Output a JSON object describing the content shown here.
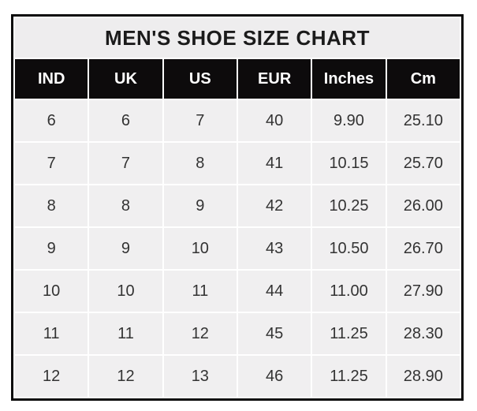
{
  "chart_data": {
    "type": "table",
    "title": "MEN'S SHOE SIZE CHART",
    "columns": [
      "IND",
      "UK",
      "US",
      "EUR",
      "Inches",
      "Cm"
    ],
    "rows": [
      [
        "6",
        "6",
        "7",
        "40",
        "9.90",
        "25.10"
      ],
      [
        "7",
        "7",
        "8",
        "41",
        "10.15",
        "25.70"
      ],
      [
        "8",
        "8",
        "9",
        "42",
        "10.25",
        "26.00"
      ],
      [
        "9",
        "9",
        "10",
        "43",
        "10.50",
        "26.70"
      ],
      [
        "10",
        "10",
        "11",
        "44",
        "11.00",
        "27.90"
      ],
      [
        "11",
        "11",
        "12",
        "45",
        "11.25",
        "28.30"
      ],
      [
        "12",
        "12",
        "13",
        "46",
        "11.25",
        "28.90"
      ]
    ],
    "layout": {
      "legend": "none",
      "grid": "white gridlines between cells, thick black outer border"
    }
  },
  "colors": {
    "page_bg": "#ffffff",
    "title_bg": "#eeedee",
    "title_text": "#1b1b1b",
    "header_bg": "#0d0b0c",
    "header_text": "#ffffff",
    "cell_bg": "#f0eff0",
    "cell_text": "#333333",
    "outer_border": "#0a0a0a",
    "gridline": "#ffffff"
  }
}
